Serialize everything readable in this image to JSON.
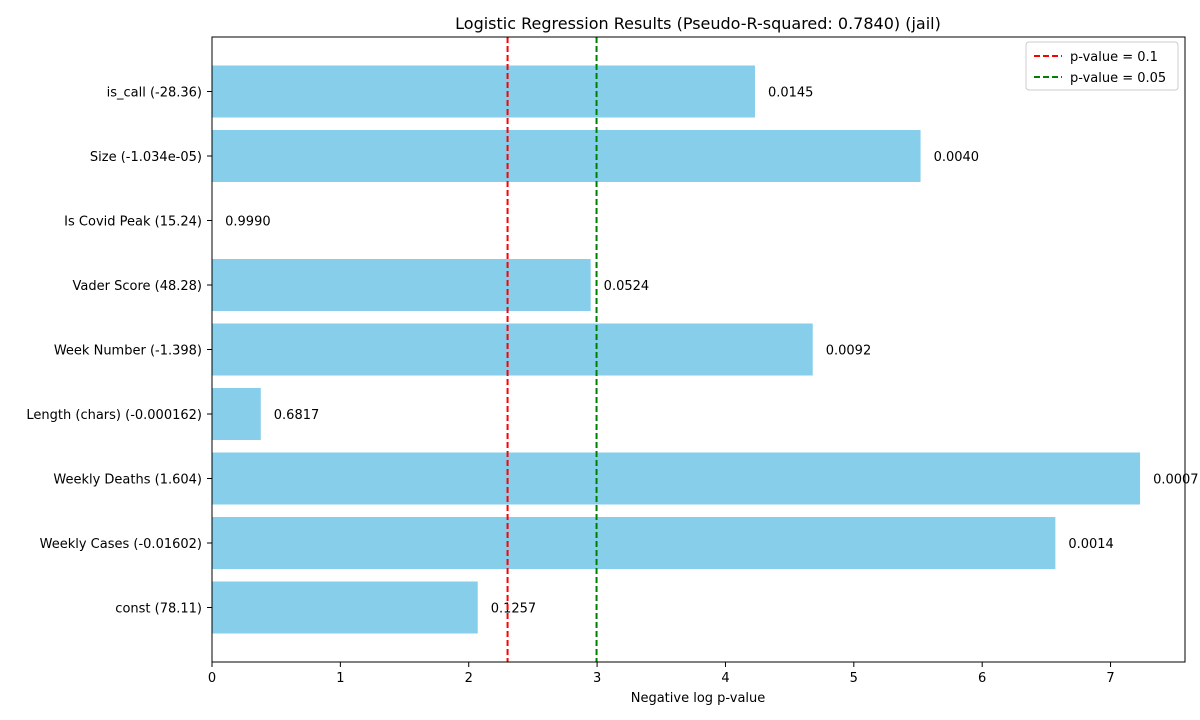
{
  "chart_data": {
    "type": "bar",
    "orientation": "horizontal",
    "title": "Logistic Regression Results (Pseudo-R-squared: 0.7840) (jail)",
    "xlabel": "Negative log p-value",
    "ylabel": "",
    "xlim": [
      0,
      7.58
    ],
    "xticks": [
      0,
      1,
      2,
      3,
      4,
      5,
      6,
      7
    ],
    "grid": false,
    "bar_color": "#87ceeb",
    "categories": [
      "const (78.11)",
      "Weekly Cases (-0.01602)",
      "Weekly Deaths (1.604)",
      "Length (chars) (-0.000162)",
      "Week Number (-1.398)",
      "Vader Score (48.28)",
      "Is Covid Peak (15.24)",
      "Size (-1.034e-05)",
      "is_call (-28.36)"
    ],
    "values": [
      2.07,
      6.57,
      7.23,
      0.38,
      4.68,
      2.95,
      0.001,
      5.52,
      4.23
    ],
    "data_labels": [
      "0.1257",
      "0.0014",
      "0.0007",
      "0.6817",
      "0.0092",
      "0.0524",
      "0.9990",
      "0.0040",
      "0.0145"
    ],
    "reference_lines": [
      {
        "name": "p-value = 0.1",
        "x": 2.302585,
        "color": "#ff0000",
        "style": "dashed"
      },
      {
        "name": "p-value = 0.05",
        "x": 2.995732,
        "color": "#008000",
        "style": "dashed"
      }
    ],
    "legend_position": "top-right"
  }
}
